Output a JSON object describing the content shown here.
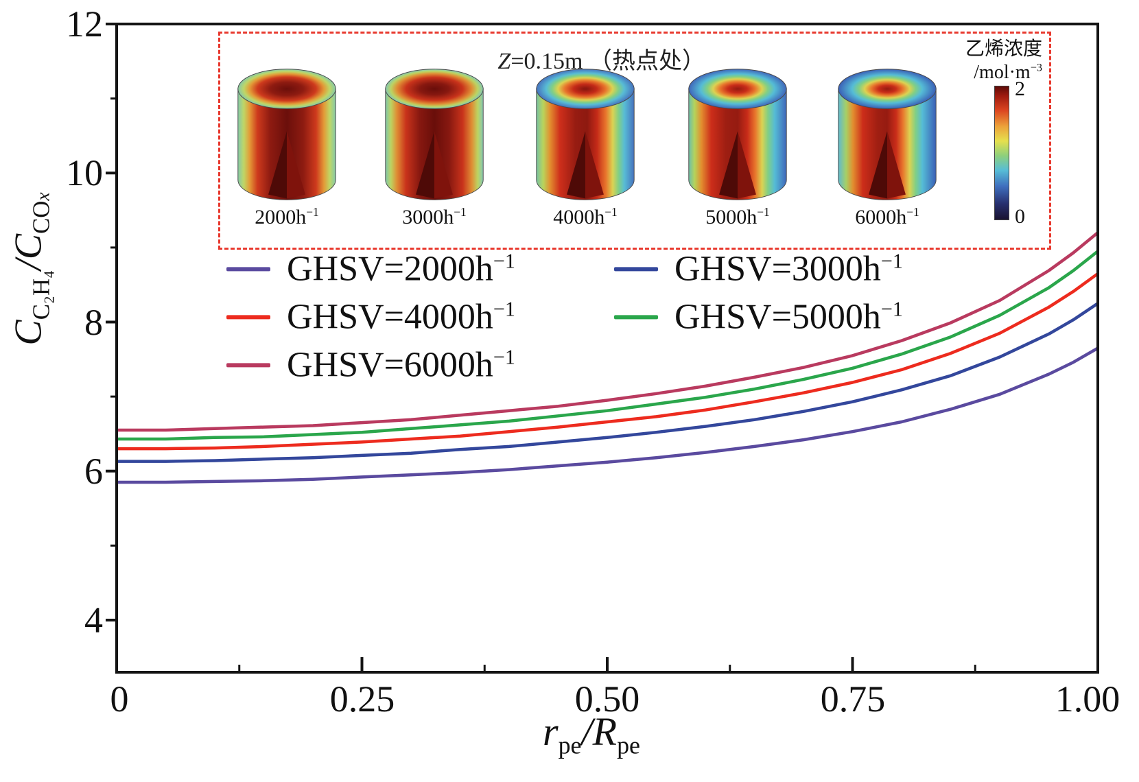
{
  "figure": {
    "background": "#ffffff",
    "frame_color": "#141414"
  },
  "axes": {
    "x_label": {
      "base1": "r",
      "sub1": "pe",
      "slash": "/",
      "base2": "R",
      "sub2": "pe"
    },
    "y_label": {
      "base1": "C",
      "sub1": "C₂H₄",
      "slash": "/",
      "base2": "C",
      "sub2": "CO",
      "sub2x": "x"
    },
    "xtick_labels": [
      "0",
      "0.25",
      "0.50",
      "0.75",
      "1.00"
    ],
    "ytick_labels": [
      "12",
      "10",
      "8",
      "6",
      "4"
    ]
  },
  "chart_data": {
    "type": "line",
    "title": "",
    "xlabel": "r_pe/R_pe",
    "ylabel": "C_C2H4/C_COx",
    "xlim": [
      0,
      1.0
    ],
    "ylim": [
      3.3,
      12
    ],
    "xticks": [
      0,
      0.25,
      0.5,
      0.75,
      1.0
    ],
    "xticks_minor": [
      0.125,
      0.375,
      0.625,
      0.875
    ],
    "yticks": [
      4,
      6,
      8,
      10,
      12
    ],
    "yticks_minor": [
      5,
      7,
      9,
      11
    ],
    "grid": false,
    "legend_position": "upper-left-below-inset",
    "x": [
      0,
      0.05,
      0.1,
      0.15,
      0.2,
      0.25,
      0.3,
      0.35,
      0.4,
      0.45,
      0.5,
      0.55,
      0.6,
      0.65,
      0.7,
      0.75,
      0.8,
      0.85,
      0.9,
      0.95,
      0.975,
      1.0
    ],
    "series": [
      {
        "name": "GHSV=2000h⁻¹",
        "color": "#5A4A9F",
        "values": [
          5.85,
          5.85,
          5.86,
          5.87,
          5.89,
          5.92,
          5.95,
          5.98,
          6.02,
          6.07,
          6.12,
          6.18,
          6.25,
          6.33,
          6.42,
          6.53,
          6.66,
          6.83,
          7.03,
          7.3,
          7.46,
          7.65
        ]
      },
      {
        "name": "GHSV=3000h⁻¹",
        "color": "#33479C",
        "values": [
          6.13,
          6.13,
          6.14,
          6.16,
          6.18,
          6.21,
          6.24,
          6.29,
          6.33,
          6.39,
          6.45,
          6.52,
          6.6,
          6.69,
          6.8,
          6.93,
          7.09,
          7.28,
          7.53,
          7.84,
          8.03,
          8.25
        ]
      },
      {
        "name": "GHSV=4000h⁻¹",
        "color": "#ED2B1E",
        "values": [
          6.3,
          6.3,
          6.31,
          6.33,
          6.36,
          6.39,
          6.43,
          6.47,
          6.53,
          6.59,
          6.66,
          6.73,
          6.82,
          6.93,
          7.05,
          7.19,
          7.36,
          7.58,
          7.85,
          8.2,
          8.41,
          8.65
        ]
      },
      {
        "name": "GHSV=5000h⁻¹",
        "color": "#2AA64B",
        "values": [
          6.43,
          6.43,
          6.45,
          6.46,
          6.49,
          6.52,
          6.57,
          6.62,
          6.67,
          6.74,
          6.81,
          6.9,
          6.99,
          7.1,
          7.23,
          7.38,
          7.57,
          7.8,
          8.09,
          8.46,
          8.69,
          8.95
        ]
      },
      {
        "name": "GHSV=6000h⁻¹",
        "color": "#B93A5F",
        "values": [
          6.55,
          6.55,
          6.57,
          6.59,
          6.61,
          6.65,
          6.69,
          6.75,
          6.81,
          6.87,
          6.95,
          7.04,
          7.14,
          7.26,
          7.39,
          7.55,
          7.75,
          7.99,
          8.29,
          8.69,
          8.93,
          9.2
        ]
      }
    ]
  },
  "legend": {
    "items": [
      {
        "base": "GHSV=2000h",
        "sup": "−1",
        "color": "#5A4A9F"
      },
      {
        "base": "GHSV=3000h",
        "sup": "−1",
        "color": "#33479C"
      },
      {
        "base": "GHSV=4000h",
        "sup": "−1",
        "color": "#ED2B1E"
      },
      {
        "base": "GHSV=5000h",
        "sup": "−1",
        "color": "#2AA64B"
      },
      {
        "base": "GHSV=6000h",
        "sup": "−1",
        "color": "#B93A5F"
      }
    ]
  },
  "inset": {
    "border_color": "#E8392E",
    "title": {
      "z": "Z",
      "eq": "=0.15m",
      "note": "（热点处）"
    },
    "colorbar": {
      "label_line1": "乙烯浓度",
      "label_line2_base": "/mol·m",
      "label_line2_sup": "−3",
      "max": "2",
      "min": "0",
      "stops": [
        [
          "0%",
          "#5E0B08"
        ],
        [
          "7%",
          "#9E1A0F"
        ],
        [
          "18%",
          "#DC4520"
        ],
        [
          "30%",
          "#ECA23A"
        ],
        [
          "41%",
          "#E6E04E"
        ],
        [
          "52%",
          "#8ED07C"
        ],
        [
          "63%",
          "#57BDD6"
        ],
        [
          "75%",
          "#3F6FBE"
        ],
        [
          "88%",
          "#27306F"
        ],
        [
          "100%",
          "#191230"
        ]
      ]
    },
    "cylinders": [
      {
        "label_base": "2000h",
        "label_sup": "−1",
        "notch": [
          "#4E0A07",
          "#7F130C"
        ],
        "body_stops": [
          [
            0,
            "#85C9A8"
          ],
          [
            0.06,
            "#BFD666"
          ],
          [
            0.12,
            "#E39A37"
          ],
          [
            0.2,
            "#CE3A1D"
          ],
          [
            0.33,
            "#8E1B11"
          ],
          [
            0.5,
            "#6B0F0B"
          ],
          [
            0.67,
            "#8E1B11"
          ],
          [
            0.8,
            "#CE3A1D"
          ],
          [
            0.88,
            "#E39A37"
          ],
          [
            0.94,
            "#BFD666"
          ],
          [
            1,
            "#85C9A8"
          ]
        ]
      },
      {
        "label_base": "3000h",
        "label_sup": "−1",
        "notch": [
          "#4E0A07",
          "#7F130C"
        ],
        "body_stops": [
          [
            0,
            "#7FC6AC"
          ],
          [
            0.055,
            "#BCD462"
          ],
          [
            0.115,
            "#DF8F35"
          ],
          [
            0.21,
            "#C9331B"
          ],
          [
            0.35,
            "#871810"
          ],
          [
            0.5,
            "#690E0A"
          ],
          [
            0.65,
            "#871810"
          ],
          [
            0.79,
            "#C9331B"
          ],
          [
            0.885,
            "#DF8F35"
          ],
          [
            0.945,
            "#BCD462"
          ],
          [
            1,
            "#84C8B4"
          ]
        ]
      },
      {
        "label_base": "4000h",
        "label_sup": "−1",
        "notch": [
          "#4E0A07",
          "#7F130C"
        ],
        "body_stops": [
          [
            0,
            "#76C2A2"
          ],
          [
            0.07,
            "#B9D45C"
          ],
          [
            0.14,
            "#E28E2F"
          ],
          [
            0.24,
            "#CE2F1B"
          ],
          [
            0.4,
            "#971C12"
          ],
          [
            0.52,
            "#8E1910"
          ],
          [
            0.62,
            "#C42A18"
          ],
          [
            0.71,
            "#E8752C"
          ],
          [
            0.78,
            "#DCD252"
          ],
          [
            0.84,
            "#82CF84"
          ],
          [
            0.9,
            "#58BCD5"
          ],
          [
            1,
            "#4672BE"
          ]
        ]
      },
      {
        "label_base": "5000h",
        "label_sup": "−1",
        "notch": [
          "#4E0A07",
          "#7F130C"
        ],
        "body_stops": [
          [
            0,
            "#6CBFAC"
          ],
          [
            0.06,
            "#B5D35A"
          ],
          [
            0.13,
            "#E28E2F"
          ],
          [
            0.23,
            "#CC2D1A"
          ],
          [
            0.38,
            "#9E1E12"
          ],
          [
            0.5,
            "#951B11"
          ],
          [
            0.6,
            "#C82C19"
          ],
          [
            0.68,
            "#E8752C"
          ],
          [
            0.75,
            "#DCD252"
          ],
          [
            0.81,
            "#82CF84"
          ],
          [
            0.88,
            "#55BCD6"
          ],
          [
            1,
            "#3F66BA"
          ]
        ]
      },
      {
        "label_base": "6000h",
        "label_sup": "−1",
        "notch": [
          "#4E0A07",
          "#7F130C"
        ],
        "body_stops": [
          [
            0,
            "#5FB9CF"
          ],
          [
            0.08,
            "#A6CF66"
          ],
          [
            0.15,
            "#E28E2F"
          ],
          [
            0.25,
            "#CC2D1A"
          ],
          [
            0.4,
            "#A01F12"
          ],
          [
            0.5,
            "#961B11"
          ],
          [
            0.59,
            "#C82C19"
          ],
          [
            0.66,
            "#E8752C"
          ],
          [
            0.73,
            "#DCD252"
          ],
          [
            0.79,
            "#82CF84"
          ],
          [
            0.86,
            "#55BCD6"
          ],
          [
            1,
            "#3A5FB6"
          ]
        ]
      }
    ]
  }
}
